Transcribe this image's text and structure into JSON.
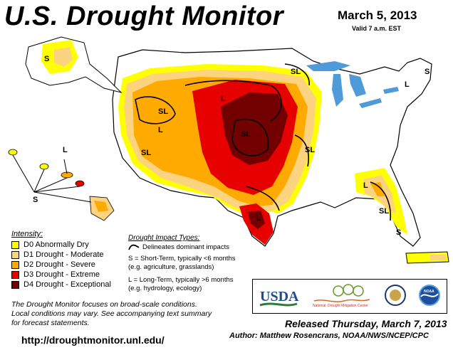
{
  "title": "U.S. Drought Monitor",
  "date": "March 5, 2013",
  "valid": "Valid 7 a.m. EST",
  "legend": {
    "title": "Intensity:",
    "items": [
      {
        "label": "D0 Abnormally Dry",
        "color": "#ffff00"
      },
      {
        "label": "D1 Drought - Moderate",
        "color": "#fcd37f"
      },
      {
        "label": "D2 Drought - Severe",
        "color": "#ffaa00"
      },
      {
        "label": "D3 Drought - Extreme",
        "color": "#e60000"
      },
      {
        "label": "D4 Drought - Exceptional",
        "color": "#730000"
      }
    ]
  },
  "impact": {
    "title": "Drought Impact Types:",
    "delineates": "Delineates dominant impacts",
    "short_line1": "S = Short-Term, typically <6 months",
    "short_line2": "(e.g. agriculture, grasslands)",
    "long_line1": "L = Long-Term, typically >6 months",
    "long_line2": "(e.g. hydrology, ecology)"
  },
  "disclaimer": {
    "line1": "The Drought Monitor focuses on broad-scale conditions.",
    "line2": "Local conditions may vary. See accompanying text summary",
    "line3": "for forecast statements."
  },
  "url": "http://droughtmonitor.unl.edu/",
  "released": "Released Thursday, March 7, 2013",
  "author": "Author: Matthew Rosencrans, NOAA/NWS/NCEP/CPC",
  "logos": {
    "usda": "USDA",
    "ndmc_line1": "National",
    "ndmc_line2": "Drought Mitigation Center",
    "noaa": "NOAA"
  },
  "map_labels": {
    "S": "S",
    "L": "L",
    "SL": "SL"
  },
  "colors": {
    "lake": "#4f9bd9",
    "land": "#ffffff",
    "boundary": "#000000"
  }
}
